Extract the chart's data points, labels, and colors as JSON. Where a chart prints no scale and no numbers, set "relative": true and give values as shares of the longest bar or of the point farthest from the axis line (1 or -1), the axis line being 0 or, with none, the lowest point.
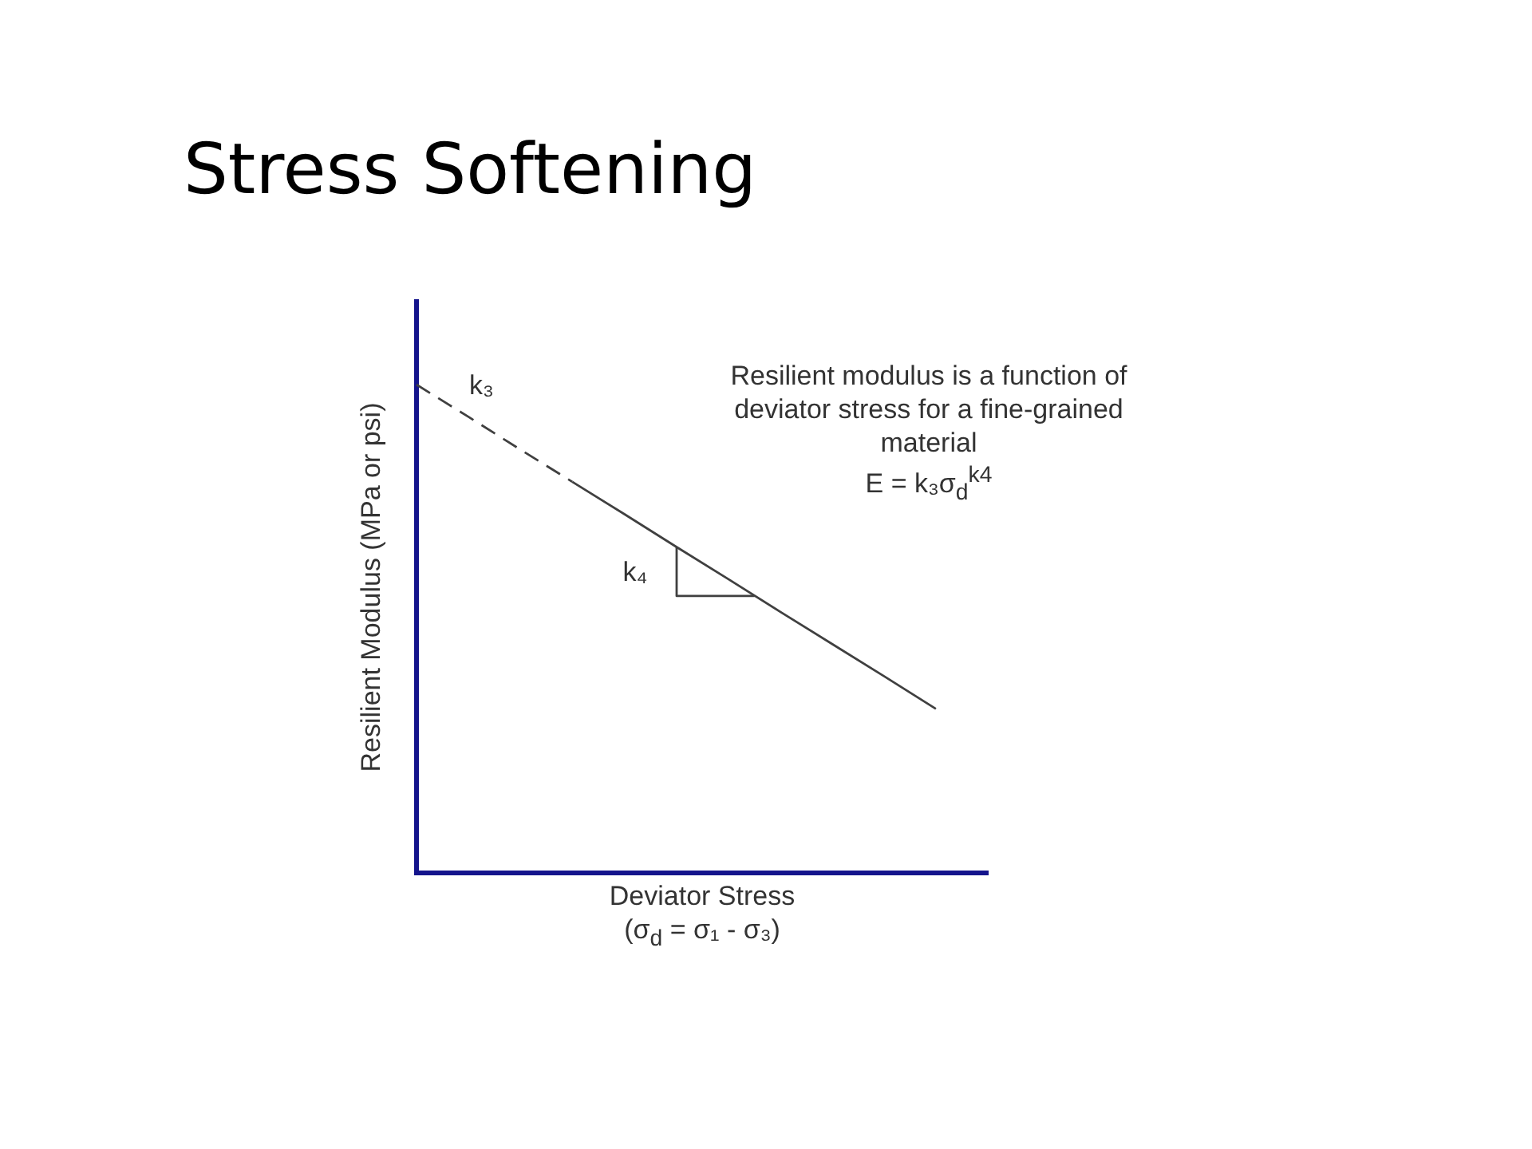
{
  "chart_data": {
    "type": "line",
    "title": "Stress Softening",
    "xlabel": "Deviator Stress\n(σ$_{d}$ = σ₁ - σ₃)",
    "ylabel": "Resilient Modulus (MPa or psi)",
    "categories": [
      null,
      null,
      null,
      null,
      null,
      null,
      null,
      null,
      null,
      null,
      null,
      null
    ],
    "relative": true,
    "series": [
      {
        "color": "#404040",
        "line_style": "dashed",
        "values": [
          1,
          0.934,
          0.867,
          0.801,
          null,
          null,
          null,
          null,
          null,
          null,
          null,
          null
        ]
      },
      {
        "color": "#404040",
        "line_style": "solid",
        "values": [
          null,
          null,
          null,
          0.801,
          0.735,
          0.668,
          0.602,
          0.535,
          0.469,
          0.403,
          0.336,
          null
        ]
      }
    ],
    "annotations": [
      "k₃",
      "k₄",
      "Resilient modulus is a function of\ndeviator stress for a fine-grained\nmaterial\nE = k₃σ$_{d}$$^{k4}$"
    ],
    "marker": "none",
    "grid": false,
    "legend": false
  }
}
